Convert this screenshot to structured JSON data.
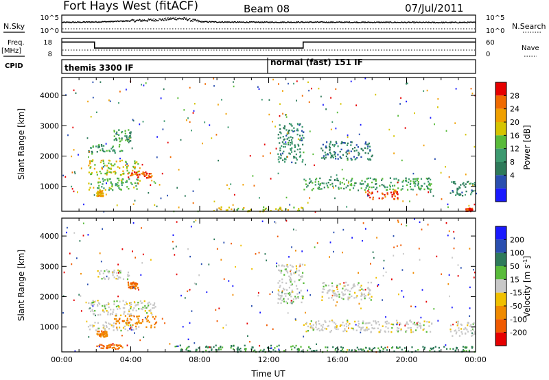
{
  "header": {
    "station": "Fort Hays West (fitACF)",
    "beam": "Beam 08",
    "date": "07/Jul/2011"
  },
  "left_labels": {
    "nsky": "N.Sky",
    "freq": "Freq.",
    "freq_unit": "[MHz]",
    "cpid": "CPID"
  },
  "right_labels": {
    "nsearch": "N.Search",
    "nave": "Nave"
  },
  "noise_panel": {
    "left_ticks": [
      "10^5",
      "10^0"
    ],
    "right_ticks": [
      "10^5",
      "10^0"
    ]
  },
  "freq_panel": {
    "left_ticks": [
      "18",
      "8"
    ],
    "right_ticks": [
      "60",
      "0"
    ]
  },
  "cpid_panel": {
    "modes": [
      "themis 3300 IF",
      "normal (fast) 151 IF"
    ]
  },
  "colors": {
    "power": [
      "#1a1aff",
      "#2a4fb0",
      "#2e7a5a",
      "#3d9a70",
      "#59bb3a",
      "#d6c400",
      "#f0a000",
      "#f06a00",
      "#e60000"
    ],
    "velocity": [
      "#1a1aff",
      "#2a4fb0",
      "#2e7a5a",
      "#59bb3a",
      "#c8c8c8",
      "#f0c000",
      "#f08a00",
      "#f05a00",
      "#e60000"
    ]
  },
  "chart_data": [
    {
      "type": "line",
      "name": "noise",
      "ylabel": "N.Sky",
      "y_scale": "log",
      "ylim": [
        1,
        100000
      ],
      "xlim": [
        0,
        24
      ],
      "x": [
        0,
        1,
        2,
        3,
        4,
        5,
        6,
        6.5,
        7,
        7.5,
        8,
        10,
        12,
        14,
        16,
        18,
        20,
        22,
        24
      ],
      "values": [
        1500,
        1800,
        2200,
        3000,
        5000,
        8000,
        15000,
        30000,
        25000,
        8000,
        2500,
        1800,
        1700,
        1800,
        1700,
        1600,
        1500,
        1400,
        1500
      ]
    },
    {
      "type": "line",
      "name": "frequency",
      "ylabel": "Freq. [MHz]",
      "xlim": [
        0,
        24
      ],
      "ylim": [
        8,
        18
      ],
      "x": [
        0,
        1.9,
        1.9,
        14,
        14,
        24
      ],
      "values": [
        16.5,
        16.5,
        12.5,
        12.5,
        16.5,
        16.5
      ]
    },
    {
      "type": "heatmap",
      "title": "Power [dB]",
      "ylabel": "Slant Range [km]",
      "xlabel": "",
      "xlim": [
        0,
        24
      ],
      "ylim": [
        180,
        4590
      ],
      "yticks": [
        1000,
        2000,
        3000,
        4000
      ],
      "colorbar_ticks": [
        4,
        8,
        12,
        16,
        20,
        24,
        28
      ],
      "colorbar_range": [
        0,
        30
      ],
      "features": [
        {
          "x": [
            2.0,
            2.4
          ],
          "y": [
            700,
            900
          ],
          "value": 22
        },
        {
          "x": [
            1.5,
            4.5
          ],
          "y": [
            900,
            1300
          ],
          "value": 14
        },
        {
          "x": [
            1.5,
            4.5
          ],
          "y": [
            1400,
            1900
          ],
          "value": 18
        },
        {
          "x": [
            3.8,
            5.2
          ],
          "y": [
            1300,
            1500
          ],
          "value": 26
        },
        {
          "x": [
            1.5,
            3.5
          ],
          "y": [
            2100,
            2400
          ],
          "value": 12
        },
        {
          "x": [
            3.0,
            4.0
          ],
          "y": [
            2500,
            2900
          ],
          "value": 12
        },
        {
          "x": [
            9.0,
            14.0
          ],
          "y": [
            200,
            350
          ],
          "value": 18
        },
        {
          "x": [
            12.5,
            14.0
          ],
          "y": [
            1800,
            3100
          ],
          "value": 10
        },
        {
          "x": [
            14.0,
            21.5
          ],
          "y": [
            900,
            1300
          ],
          "value": 12
        },
        {
          "x": [
            17.5,
            19.5
          ],
          "y": [
            600,
            900
          ],
          "value": 26
        },
        {
          "x": [
            15.0,
            18.0
          ],
          "y": [
            1900,
            2500
          ],
          "value": 8
        },
        {
          "x": [
            22.5,
            24.0
          ],
          "y": [
            700,
            1200
          ],
          "value": 10
        },
        {
          "x": [
            23.4,
            23.8
          ],
          "y": [
            200,
            300
          ],
          "value": 28
        }
      ]
    },
    {
      "type": "heatmap",
      "title": "Velocity [m s^-1]",
      "ylabel": "Slant Range [km]",
      "xlabel": "Time UT",
      "xlim": [
        0,
        24
      ],
      "ylim": [
        180,
        4590
      ],
      "yticks": [
        1000,
        2000,
        3000,
        4000
      ],
      "xticks": [
        "00:00",
        "04:00",
        "08:00",
        "12:00",
        "16:00",
        "20:00",
        "00:00"
      ],
      "colorbar_ticks": [
        200,
        100,
        50,
        15,
        -15,
        -50,
        -100,
        -200
      ],
      "features": [
        {
          "x": [
            2.0,
            2.6
          ],
          "y": [
            700,
            900
          ],
          "value": -60
        },
        {
          "x": [
            1.5,
            4.5
          ],
          "y": [
            900,
            1200
          ],
          "value": 0
        },
        {
          "x": [
            1.5,
            5.5
          ],
          "y": [
            1400,
            1900
          ],
          "value": 0
        },
        {
          "x": [
            3.0,
            5.5
          ],
          "y": [
            1000,
            1400
          ],
          "value": -60
        },
        {
          "x": [
            3.8,
            4.4
          ],
          "y": [
            2300,
            2500
          ],
          "value": -80
        },
        {
          "x": [
            2.0,
            4.0
          ],
          "y": [
            2600,
            2900
          ],
          "value": 0
        },
        {
          "x": [
            2.0,
            3.5
          ],
          "y": [
            300,
            450
          ],
          "value": -80
        },
        {
          "x": [
            6.5,
            14.0
          ],
          "y": [
            200,
            420
          ],
          "value": 40
        },
        {
          "x": [
            14.0,
            24.0
          ],
          "y": [
            200,
            380
          ],
          "value": 40
        },
        {
          "x": [
            12.5,
            14.0
          ],
          "y": [
            1800,
            3100
          ],
          "value": 0
        },
        {
          "x": [
            14.0,
            21.5
          ],
          "y": [
            850,
            1250
          ],
          "value": 0
        },
        {
          "x": [
            15.0,
            18.0
          ],
          "y": [
            1900,
            2500
          ],
          "value": 0
        },
        {
          "x": [
            22.5,
            24.0
          ],
          "y": [
            700,
            1200
          ],
          "value": 0
        }
      ]
    }
  ]
}
